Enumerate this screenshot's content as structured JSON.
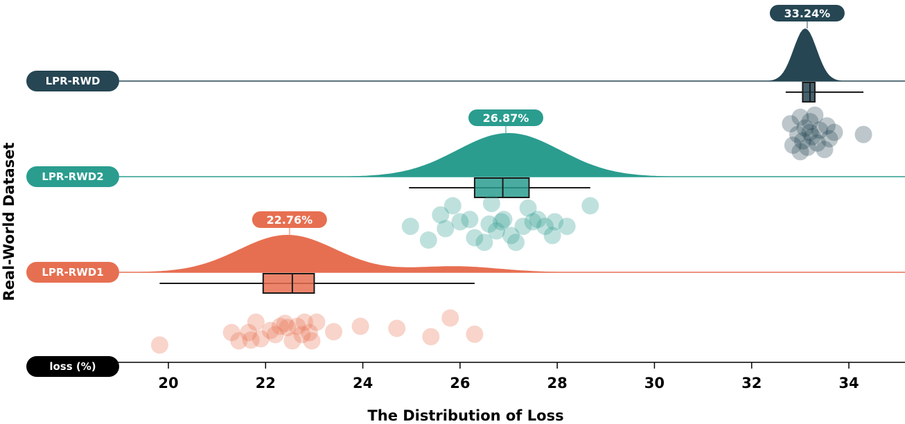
{
  "chart_data": {
    "type": "raincloud",
    "xlabel": "The Distribution of Loss",
    "ylabel": "Real-World Dataset",
    "axis_tag": "loss (%)",
    "xlim": [
      19.1,
      35.2
    ],
    "xticks": [
      20,
      22,
      24,
      26,
      28,
      30,
      32,
      34
    ],
    "grid": false,
    "series": [
      {
        "name": "LPR-RWD",
        "color": "#264653",
        "peak_label": "33.24%",
        "peak_x": 33.1,
        "box": {
          "whisker_low": 32.7,
          "q1": 33.05,
          "median": 33.2,
          "q3": 33.3,
          "whisker_high": 34.3
        },
        "points": [
          [
            32.8,
            0.7
          ],
          [
            32.85,
            0.2
          ],
          [
            32.95,
            0.45
          ],
          [
            33.0,
            0.85
          ],
          [
            33.05,
            0.3
          ],
          [
            33.1,
            0.6
          ],
          [
            33.15,
            0.15
          ],
          [
            33.2,
            0.75
          ],
          [
            33.25,
            0.4
          ],
          [
            33.3,
            0.9
          ],
          [
            33.35,
            0.25
          ],
          [
            33.4,
            0.55
          ],
          [
            33.5,
            0.1
          ],
          [
            33.55,
            0.65
          ],
          [
            33.6,
            0.35
          ],
          [
            33.7,
            0.5
          ],
          [
            33.0,
            0.05
          ],
          [
            33.2,
            0.5
          ],
          [
            34.3,
            0.45
          ]
        ]
      },
      {
        "name": "LPR-RWD2",
        "color": "#2a9d8f",
        "peak_label": "26.87%",
        "peak_x": 27.0,
        "box": {
          "whisker_low": 24.95,
          "q1": 26.3,
          "median": 26.88,
          "q3": 27.42,
          "whisker_high": 28.68
        },
        "points": [
          [
            24.98,
            0.55
          ],
          [
            25.35,
            0.25
          ],
          [
            25.6,
            0.8
          ],
          [
            25.7,
            0.5
          ],
          [
            25.85,
            1.0
          ],
          [
            26.0,
            0.65
          ],
          [
            26.2,
            0.7
          ],
          [
            26.3,
            0.3
          ],
          [
            26.5,
            0.2
          ],
          [
            26.6,
            0.6
          ],
          [
            26.65,
            1.05
          ],
          [
            26.75,
            0.45
          ],
          [
            26.85,
            0.65
          ],
          [
            26.9,
            0.7
          ],
          [
            27.05,
            0.35
          ],
          [
            27.15,
            0.2
          ],
          [
            27.3,
            0.55
          ],
          [
            27.4,
            0.95
          ],
          [
            27.5,
            0.65
          ],
          [
            27.6,
            0.7
          ],
          [
            27.75,
            0.55
          ],
          [
            27.9,
            0.35
          ],
          [
            27.95,
            0.65
          ],
          [
            28.2,
            0.55
          ],
          [
            28.68,
            1.0
          ]
        ]
      },
      {
        "name": "LPR-RWD1",
        "color": "#e76f51",
        "peak_label": "22.76%",
        "peak_x": 22.45,
        "box": {
          "whisker_low": 19.82,
          "q1": 21.95,
          "median": 22.55,
          "q3": 23.0,
          "whisker_high": 26.3
        },
        "points": [
          [
            19.82,
            0.0
          ],
          [
            21.3,
            0.3
          ],
          [
            21.45,
            0.1
          ],
          [
            21.65,
            0.3
          ],
          [
            21.7,
            0.12
          ],
          [
            21.8,
            0.55
          ],
          [
            21.9,
            0.15
          ],
          [
            22.1,
            0.35
          ],
          [
            22.2,
            0.25
          ],
          [
            22.3,
            0.45
          ],
          [
            22.4,
            0.52
          ],
          [
            22.45,
            0.42
          ],
          [
            22.55,
            0.1
          ],
          [
            22.65,
            0.45
          ],
          [
            22.75,
            0.25
          ],
          [
            22.8,
            0.55
          ],
          [
            22.9,
            0.3
          ],
          [
            22.95,
            0.1
          ],
          [
            23.05,
            0.55
          ],
          [
            23.4,
            0.32
          ],
          [
            23.95,
            0.45
          ],
          [
            24.7,
            0.4
          ],
          [
            25.4,
            0.2
          ],
          [
            25.8,
            0.65
          ],
          [
            26.3,
            0.26
          ]
        ]
      }
    ]
  }
}
